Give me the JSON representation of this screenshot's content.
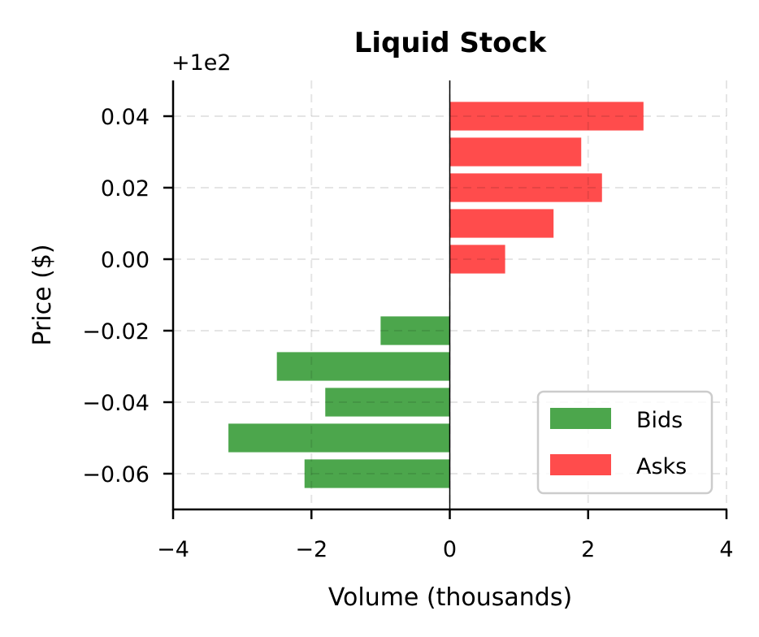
{
  "chart_data": {
    "type": "bar",
    "orientation": "horizontal",
    "title": "Liquid Stock",
    "xlabel": "Volume (thousands)",
    "ylabel": "Price ($)",
    "y_offset_label": "+1e2",
    "y_offset": 100,
    "xlim": [
      -4,
      4
    ],
    "ylim": [
      -0.07,
      0.05
    ],
    "xticks": [
      -4,
      -2,
      0,
      2,
      4
    ],
    "xtick_labels": [
      "−4",
      "−2",
      "0",
      "2",
      "4"
    ],
    "yticks": [
      0.04,
      0.02,
      0.0,
      -0.02,
      -0.04,
      -0.06
    ],
    "ytick_labels": [
      "0.04",
      "0.02",
      "0.00",
      "−0.02",
      "−0.04",
      "−0.06"
    ],
    "grid": true,
    "legend_position": "lower right",
    "series": [
      {
        "name": "Bids",
        "color": "#4ca64c",
        "prices": [
          -0.02,
          -0.03,
          -0.04,
          -0.05,
          -0.06
        ],
        "values": [
          -1.0,
          -2.5,
          -1.8,
          -3.2,
          -2.1
        ]
      },
      {
        "name": "Asks",
        "color": "#ff4c4c",
        "prices": [
          0.04,
          0.03,
          0.02,
          0.01,
          0.0
        ],
        "values": [
          2.8,
          1.9,
          2.2,
          1.5,
          0.8
        ]
      }
    ]
  }
}
